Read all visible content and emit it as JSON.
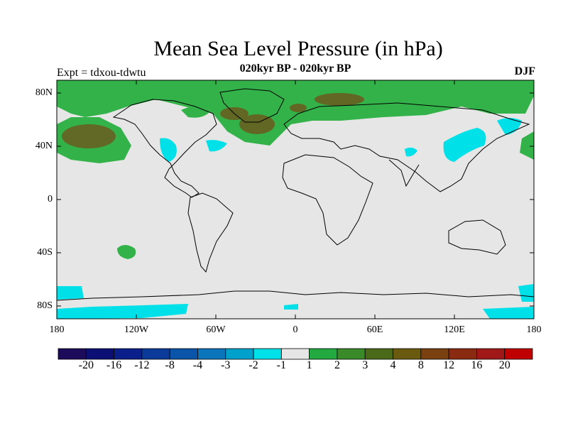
{
  "title": "Mean Sea Level Pressure (in hPa)",
  "subtitle": "020kyr BP - 020kyr BP",
  "experiment": "Expt = tdxou-tdwtu",
  "season": "DJF",
  "colors": {
    "land_ocean_bg": "#e6e6e6",
    "coast": "#000000",
    "green_low": "#33b24a",
    "green_mid": "#4b8a2a",
    "brown": "#6b5a1e",
    "cyan": "#00e0e8"
  },
  "map": {
    "lat_labels": [
      "80N",
      "40N",
      "0",
      "40S",
      "80S"
    ],
    "lon_labels": [
      "180",
      "120W",
      "60W",
      "0",
      "60E",
      "120E",
      "180"
    ]
  },
  "colorbar": {
    "colors": [
      "#1c0a5a",
      "#0c0f74",
      "#0a1f8a",
      "#0a3a9a",
      "#0a55aa",
      "#0a75bb",
      "#00a0cc",
      "#00e0e8",
      "#e6e6e6",
      "#22aa40",
      "#3a8a2a",
      "#4a6a1a",
      "#6a5a10",
      "#7a4010",
      "#8a2a10",
      "#a01818",
      "#c00000"
    ],
    "labels": [
      "-20",
      "-16",
      "-12",
      "-8",
      "-4",
      "-3",
      "-2",
      "-1",
      "1",
      "2",
      "3",
      "4",
      "8",
      "12",
      "16",
      "20"
    ]
  }
}
